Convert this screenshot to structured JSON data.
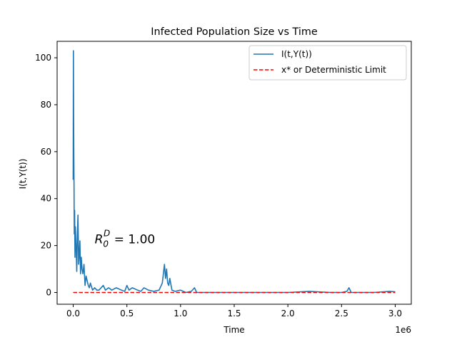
{
  "chart_data": {
    "type": "line",
    "title": "Infected Population Size vs Time",
    "xlabel": "Time",
    "ylabel": "I(t,Y(t))",
    "x_offset_label": "1e6",
    "xlim": [
      -0.15,
      3.15
    ],
    "ylim": [
      -5,
      107
    ],
    "xticks": [
      0.0,
      0.5,
      1.0,
      1.5,
      2.0,
      2.5,
      3.0
    ],
    "xtick_labels": [
      "0.0",
      "0.5",
      "1.0",
      "1.5",
      "2.0",
      "2.5",
      "3.0"
    ],
    "yticks": [
      0,
      20,
      40,
      60,
      80,
      100
    ],
    "ytick_labels": [
      "0",
      "20",
      "40",
      "60",
      "80",
      "100"
    ],
    "grid": false,
    "legend_position": "top-right",
    "annotation": {
      "base": "R",
      "subscript": "0",
      "superscript": "D",
      "value_text": " = 1.00",
      "x": 0.2,
      "y": 21
    },
    "series": [
      {
        "name": "I(t,Y(t))",
        "style": "solid",
        "color": "#1f77b4",
        "x": [
          0.0,
          0.002,
          0.004,
          0.006,
          0.008,
          0.01,
          0.013,
          0.016,
          0.02,
          0.024,
          0.028,
          0.033,
          0.038,
          0.044,
          0.05,
          0.056,
          0.062,
          0.068,
          0.075,
          0.082,
          0.09,
          0.1,
          0.11,
          0.12,
          0.13,
          0.14,
          0.15,
          0.16,
          0.18,
          0.2,
          0.22,
          0.24,
          0.26,
          0.28,
          0.3,
          0.33,
          0.36,
          0.4,
          0.45,
          0.48,
          0.5,
          0.52,
          0.55,
          0.6,
          0.63,
          0.66,
          0.7,
          0.75,
          0.8,
          0.83,
          0.85,
          0.86,
          0.87,
          0.88,
          0.89,
          0.9,
          0.92,
          0.95,
          1.0,
          1.05,
          1.1,
          1.13,
          1.15,
          1.2,
          1.4,
          1.6,
          1.8,
          2.0,
          2.2,
          2.4,
          2.5,
          2.55,
          2.57,
          2.59,
          2.65,
          2.8,
          2.95,
          3.0
        ],
        "y": [
          48,
          103,
          75,
          58,
          45,
          25,
          35,
          15,
          28,
          22,
          17,
          9,
          24,
          33,
          12,
          16,
          22,
          8,
          15,
          10,
          8,
          12,
          3,
          7,
          5,
          3,
          2,
          4,
          1,
          2,
          1,
          1,
          2,
          3,
          1,
          2,
          1,
          2,
          1,
          0.5,
          3,
          1,
          2,
          1,
          0.5,
          2,
          1,
          0.5,
          1,
          4,
          12,
          6,
          10,
          4,
          3,
          6,
          1,
          0.5,
          1,
          0,
          0.5,
          2,
          0,
          0,
          0,
          0,
          0,
          0,
          0.5,
          0,
          0,
          0.5,
          2,
          0,
          0,
          0,
          0.5,
          0.3
        ]
      },
      {
        "name": "x* or Deterministic Limit",
        "style": "dashed",
        "color": "#ff0000",
        "x": [
          0,
          3.0
        ],
        "y": [
          0,
          0
        ]
      }
    ]
  }
}
